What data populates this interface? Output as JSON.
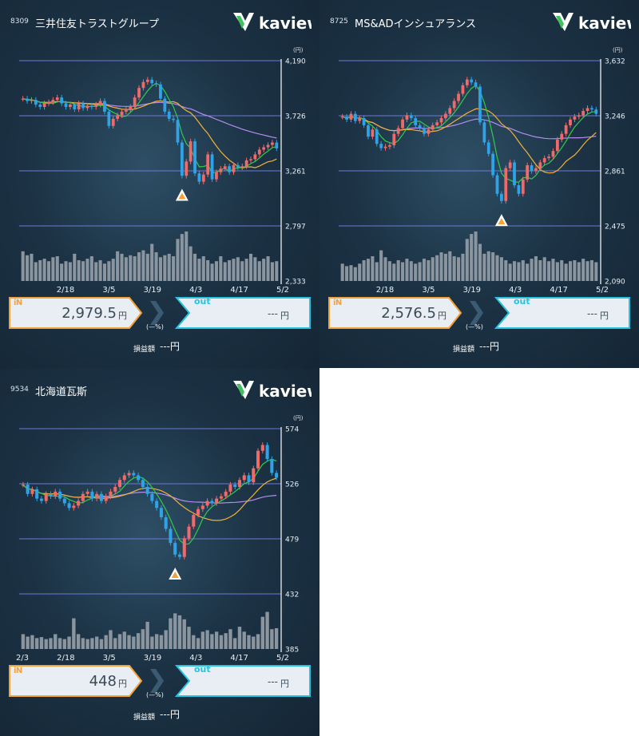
{
  "panels": [
    {
      "code": "8309",
      "name": "三井住友トラストグループ",
      "logo_text": "kaview",
      "unit": "(円)",
      "in_label": "iN",
      "in_price": "2,979.5",
      "in_yen": "円",
      "pct": "(—%)",
      "out_label": "out",
      "out_price": "---",
      "out_yen": "円",
      "pl_label": "損益額",
      "pl_value": "---円",
      "chart_data": {
        "type": "candlestick",
        "ylim": [
          2333,
          4190
        ],
        "y_ticks": [
          "4,190",
          "3,726",
          "3,261",
          "2,797",
          "2,333"
        ],
        "x_labels": [
          "2/18",
          "3/5",
          "3/19",
          "4/3",
          "4/17",
          "5/2"
        ],
        "closes": [
          3870,
          3850,
          3860,
          3820,
          3800,
          3830,
          3840,
          3860,
          3880,
          3830,
          3800,
          3820,
          3780,
          3830,
          3790,
          3810,
          3800,
          3820,
          3850,
          3760,
          3640,
          3700,
          3730,
          3760,
          3780,
          3800,
          3880,
          3960,
          4010,
          4030,
          4000,
          3990,
          3870,
          3760,
          3700,
          3690,
          3500,
          3220,
          3340,
          3510,
          3240,
          3170,
          3230,
          3400,
          3190,
          3250,
          3280,
          3300,
          3250,
          3310,
          3290,
          3300,
          3350,
          3360,
          3400,
          3440,
          3460,
          3480,
          3500,
          3450
        ],
        "volume": [
          0.6,
          0.52,
          0.55,
          0.38,
          0.42,
          0.45,
          0.4,
          0.48,
          0.5,
          0.35,
          0.4,
          0.38,
          0.55,
          0.42,
          0.4,
          0.45,
          0.5,
          0.38,
          0.42,
          0.35,
          0.4,
          0.45,
          0.6,
          0.55,
          0.48,
          0.52,
          0.5,
          0.58,
          0.62,
          0.55,
          0.75,
          0.58,
          0.48,
          0.52,
          0.55,
          0.5,
          0.85,
          0.95,
          1.0,
          0.7,
          0.55,
          0.45,
          0.5,
          0.42,
          0.35,
          0.4,
          0.5,
          0.38,
          0.42,
          0.45,
          0.48,
          0.4,
          0.45,
          0.55,
          0.48,
          0.4,
          0.45,
          0.5,
          0.38,
          0.4
        ],
        "signal_index": 37,
        "lines": [
          {
            "color": "#2fcc4a",
            "period": 5
          },
          {
            "color": "#f0b23a",
            "period": 15
          },
          {
            "color": "#b58cf0",
            "period": 40
          }
        ]
      }
    },
    {
      "code": "8725",
      "name": "MS&ADインシュアランス",
      "logo_text": "kaview",
      "unit": "(円)",
      "in_label": "iN",
      "in_price": "2,576.5",
      "in_yen": "円",
      "pct": "(—%)",
      "out_label": "out",
      "out_price": "---",
      "out_yen": "円",
      "pl_label": "損益額",
      "pl_value": "---円",
      "chart_data": {
        "type": "candlestick",
        "ylim": [
          2090,
          3632
        ],
        "y_ticks": [
          "3,632",
          "3,246",
          "2,861",
          "2,475",
          "2,090"
        ],
        "x_labels": [
          "2/18",
          "3/5",
          "3/19",
          "4/3",
          "4/17",
          "5/2"
        ],
        "closes": [
          3240,
          3220,
          3260,
          3210,
          3230,
          3180,
          3100,
          3150,
          3050,
          3020,
          3030,
          3040,
          3120,
          3160,
          3220,
          3250,
          3230,
          3180,
          3160,
          3120,
          3150,
          3180,
          3200,
          3230,
          3260,
          3300,
          3350,
          3400,
          3460,
          3500,
          3480,
          3450,
          3200,
          3060,
          2980,
          2830,
          2700,
          2650,
          2880,
          2920,
          2760,
          2700,
          2800,
          2900,
          2860,
          2880,
          2920,
          2950,
          2960,
          3000,
          3080,
          3120,
          3180,
          3220,
          3240,
          3250,
          3280,
          3300,
          3290,
          3260
        ],
        "volume": [
          0.35,
          0.3,
          0.32,
          0.28,
          0.35,
          0.42,
          0.45,
          0.5,
          0.38,
          0.62,
          0.48,
          0.4,
          0.35,
          0.42,
          0.38,
          0.45,
          0.4,
          0.35,
          0.38,
          0.45,
          0.42,
          0.48,
          0.52,
          0.58,
          0.55,
          0.6,
          0.5,
          0.48,
          0.55,
          0.85,
          0.95,
          1.0,
          0.75,
          0.55,
          0.6,
          0.58,
          0.52,
          0.48,
          0.42,
          0.35,
          0.4,
          0.38,
          0.42,
          0.35,
          0.45,
          0.5,
          0.42,
          0.48,
          0.4,
          0.45,
          0.38,
          0.42,
          0.35,
          0.4,
          0.42,
          0.38,
          0.45,
          0.4,
          0.42,
          0.38
        ],
        "signal_index": 37,
        "lines": [
          {
            "color": "#2fcc4a",
            "period": 5
          },
          {
            "color": "#f0b23a",
            "period": 15
          },
          {
            "color": "#b58cf0",
            "period": 40
          }
        ]
      }
    },
    {
      "code": "9534",
      "name": "北海道瓦斯",
      "logo_text": "kaview",
      "unit": "(円)",
      "in_label": "iN",
      "in_price": "448",
      "in_yen": "円",
      "pct": "(—%)",
      "out_label": "out",
      "out_price": "---",
      "out_yen": "円",
      "pl_label": "損益額",
      "pl_value": "---円",
      "chart_data": {
        "type": "candlestick",
        "ylim": [
          385,
          574
        ],
        "y_ticks": [
          "574",
          "526",
          "479",
          "432",
          "385"
        ],
        "x_labels": [
          "2/3",
          "2/18",
          "3/5",
          "3/19",
          "4/3",
          "4/17",
          "5/2"
        ],
        "closes": [
          526,
          518,
          522,
          514,
          512,
          518,
          516,
          520,
          514,
          510,
          506,
          508,
          512,
          518,
          520,
          514,
          518,
          512,
          516,
          520,
          524,
          530,
          534,
          536,
          534,
          530,
          524,
          518,
          512,
          506,
          498,
          488,
          476,
          466,
          464,
          480,
          490,
          500,
          505,
          508,
          512,
          510,
          514,
          516,
          520,
          526,
          524,
          530,
          534,
          528,
          540,
          555,
          560,
          548,
          536,
          532
        ],
        "volume": [
          0.3,
          0.25,
          0.28,
          0.22,
          0.24,
          0.2,
          0.22,
          0.3,
          0.22,
          0.2,
          0.25,
          0.62,
          0.3,
          0.22,
          0.2,
          0.22,
          0.25,
          0.2,
          0.28,
          0.38,
          0.22,
          0.3,
          0.35,
          0.28,
          0.25,
          0.32,
          0.4,
          0.55,
          0.25,
          0.3,
          0.28,
          0.38,
          0.62,
          0.72,
          0.68,
          0.6,
          0.45,
          0.28,
          0.22,
          0.35,
          0.38,
          0.3,
          0.35,
          0.28,
          0.32,
          0.4,
          0.22,
          0.45,
          0.35,
          0.28,
          0.25,
          0.3,
          0.65,
          0.75,
          0.4,
          0.42
        ],
        "signal_index": 33,
        "lines": [
          {
            "color": "#2fcc4a",
            "period": 5
          },
          {
            "color": "#f0b23a",
            "period": 15
          },
          {
            "color": "#b58cf0",
            "period": 40
          }
        ]
      }
    }
  ]
}
